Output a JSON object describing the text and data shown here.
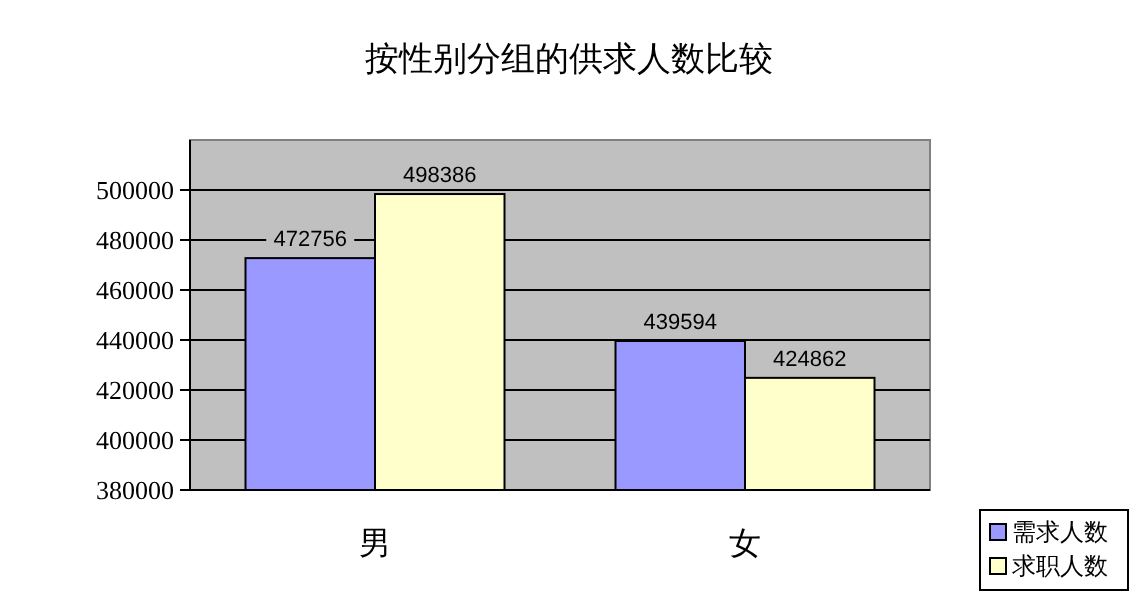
{
  "chart_data": {
    "type": "bar",
    "title": "按性别分组的供求人数比较",
    "categories": [
      "男",
      "女"
    ],
    "series": [
      {
        "name": "需求人数",
        "color": "#9999ff",
        "values": [
          472756,
          439594
        ]
      },
      {
        "name": "求职人数",
        "color": "#ffffcc",
        "values": [
          498386,
          424862
        ]
      }
    ],
    "ylim": [
      380000,
      520000
    ],
    "yticks": [
      380000,
      400000,
      420000,
      440000,
      460000,
      480000,
      500000
    ],
    "grid": "y",
    "legend": "bottom right",
    "data_labels": true
  }
}
